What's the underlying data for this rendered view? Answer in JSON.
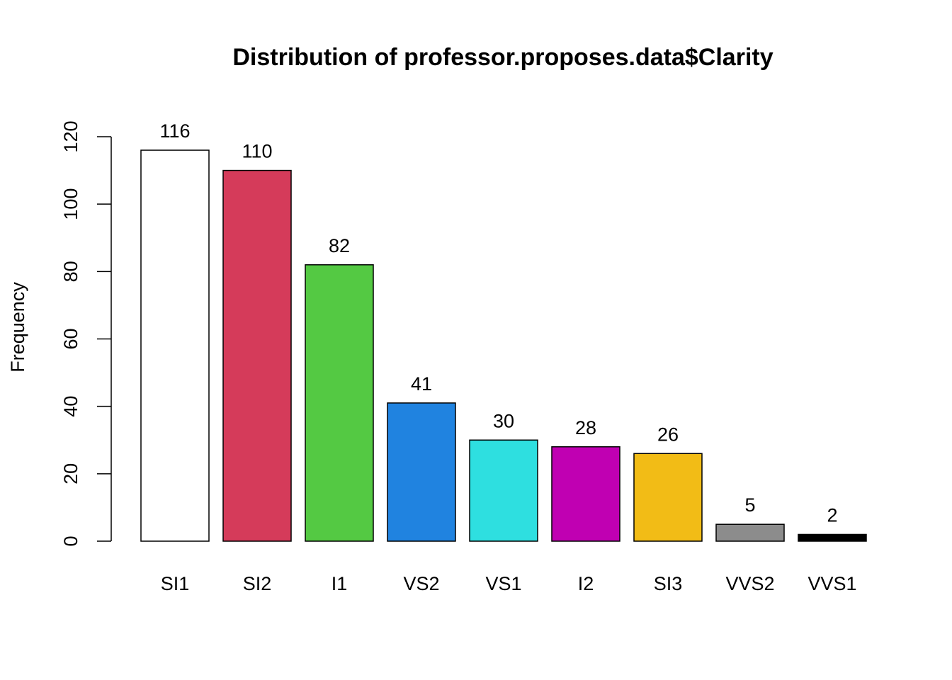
{
  "chart_data": {
    "type": "bar",
    "title": "Distribution of professor.proposes.data$Clarity",
    "xlabel": "",
    "ylabel": "Frequency",
    "ylim": [
      0,
      120
    ],
    "yticks": [
      0,
      20,
      40,
      60,
      80,
      100,
      120
    ],
    "grid": false,
    "categories": [
      "SI1",
      "SI2",
      "I1",
      "VS2",
      "VS1",
      "I2",
      "SI3",
      "VVS2",
      "VVS1"
    ],
    "values": [
      116,
      110,
      82,
      41,
      30,
      28,
      26,
      5,
      2
    ],
    "colors": [
      "#FFFFFF",
      "#D53B5A",
      "#54C943",
      "#2083E0",
      "#2EDFE0",
      "#C000B2",
      "#F2BC16",
      "#8C8C8C",
      "#000000"
    ]
  }
}
